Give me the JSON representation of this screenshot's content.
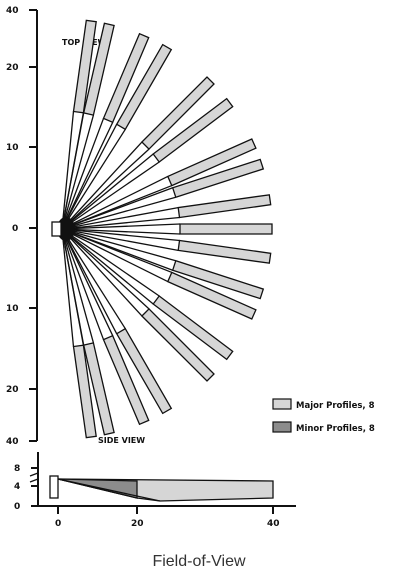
{
  "top_view": {
    "title": "TOP VIEW",
    "y_ticks": [
      "40",
      "20",
      "10",
      "0",
      "10",
      "20",
      "40"
    ],
    "spoke_angles_deg": [
      82,
      77,
      67,
      60,
      45,
      37,
      24,
      18,
      8,
      0,
      -8,
      -18,
      -24,
      -37,
      -45,
      -60,
      -67,
      -77,
      -82
    ],
    "colors": {
      "major": "#d6d6d6",
      "minor": "#8c8c8c",
      "stroke": "#111111"
    }
  },
  "side_view": {
    "title": "SIDE VIEW",
    "y_ticks": [
      "8",
      "4",
      "0"
    ],
    "x_ticks": [
      "0",
      "20",
      "40"
    ]
  },
  "legend": {
    "items": [
      {
        "label": "Major Profiles, 8",
        "color": "#d6d6d6"
      },
      {
        "label": "Minor Profiles, 8",
        "color": "#8c8c8c"
      }
    ]
  },
  "caption": "Field-of-View"
}
